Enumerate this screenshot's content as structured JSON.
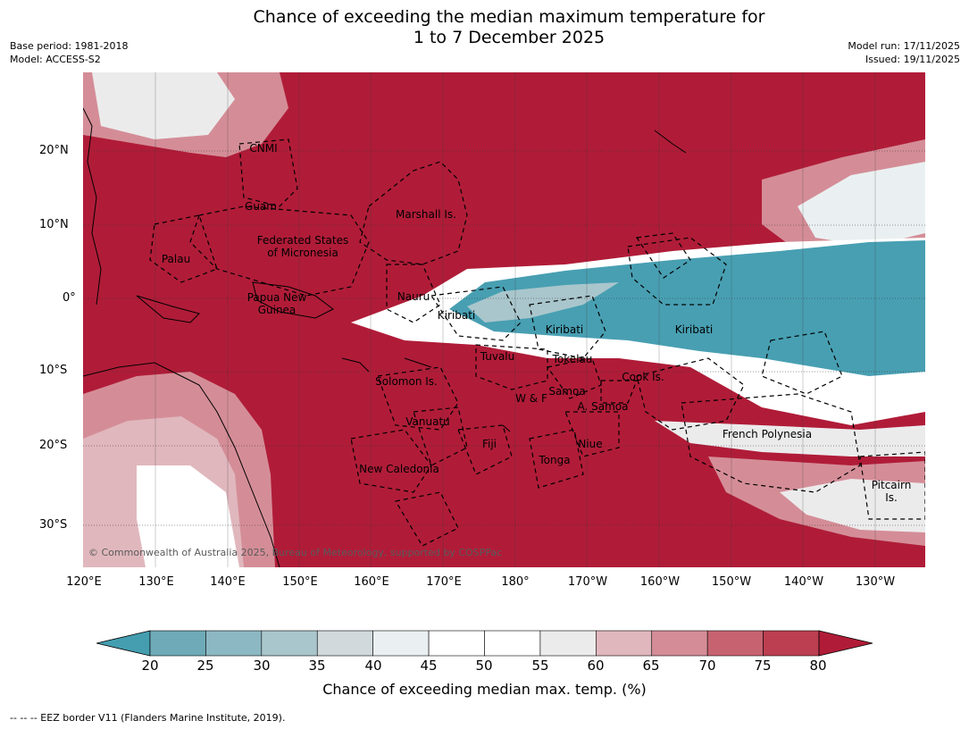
{
  "title_line1": "Chance of exceeding the median maximum temperature for",
  "title_line2": "1 to 7 December 2025",
  "meta": {
    "base_period": "Base period: 1981-2018",
    "model": "Model: ACCESS-S2",
    "model_run": "Model run: 17/11/2025",
    "issued": "Issued: 19/11/2025"
  },
  "map": {
    "lat_labels": [
      "20°N",
      "10°N",
      "0°",
      "10°S",
      "20°S",
      "30°S"
    ],
    "lon_labels": [
      "120°E",
      "130°E",
      "140°E",
      "150°E",
      "160°E",
      "170°E",
      "180°",
      "170°W",
      "160°W",
      "150°W",
      "140°W",
      "130°W"
    ],
    "regions": {
      "cnmi": "CNMI",
      "guam": "Guam",
      "marshall": "Marshall Is.",
      "fsm_1": "Federated States",
      "fsm_2": "of Micronesia",
      "palau": "Palau",
      "png_1": "Papua New",
      "png_2": "Guinea",
      "nauru": "Nauru",
      "kiribati_w": "Kiribati",
      "kiribati_c": "Kiribati",
      "kiribati_e": "Kiribati",
      "tuvalu": "Tuvalu",
      "tokelau": "Tokelau",
      "cook": "Cook Is.",
      "solomon": "Solomon Is.",
      "wf": "W & F",
      "samoa": "Samoa",
      "a_samoa": "A. Samoa",
      "vanuatu": "Vanuatu",
      "fiji": "Fiji",
      "niue": "Niue",
      "tonga": "Tonga",
      "new_caledonia": "New Caledonia",
      "french_polynesia": "French Polynesia",
      "pitcairn_1": "Pitcairn",
      "pitcairn_2": "Is."
    },
    "copyright": "© Commonwealth of Australia 2025, Bureau of Meteorology, supported by COSPPac",
    "colors": {
      "hot": "#b01c38",
      "cool": "#489fb2",
      "neutral": "#ffffff"
    }
  },
  "colorbar": {
    "ticks": [
      "20",
      "25",
      "30",
      "35",
      "40",
      "45",
      "50",
      "55",
      "60",
      "65",
      "70",
      "75",
      "80"
    ],
    "colors": [
      "#449eb0",
      "#6eaab7",
      "#8cb8c3",
      "#a9c6cc",
      "#d1d9dc",
      "#eaf0f1",
      "#ffffff",
      "#ffffff",
      "#ecebec",
      "#e0b7bd",
      "#d48d97",
      "#c76370",
      "#bc3e51",
      "#b01c38"
    ],
    "label": "Chance of exceeding median max. temp. (%)"
  },
  "footnote": "--  --  -- EEZ border V11 (Flanders Marine Institute, 2019)."
}
